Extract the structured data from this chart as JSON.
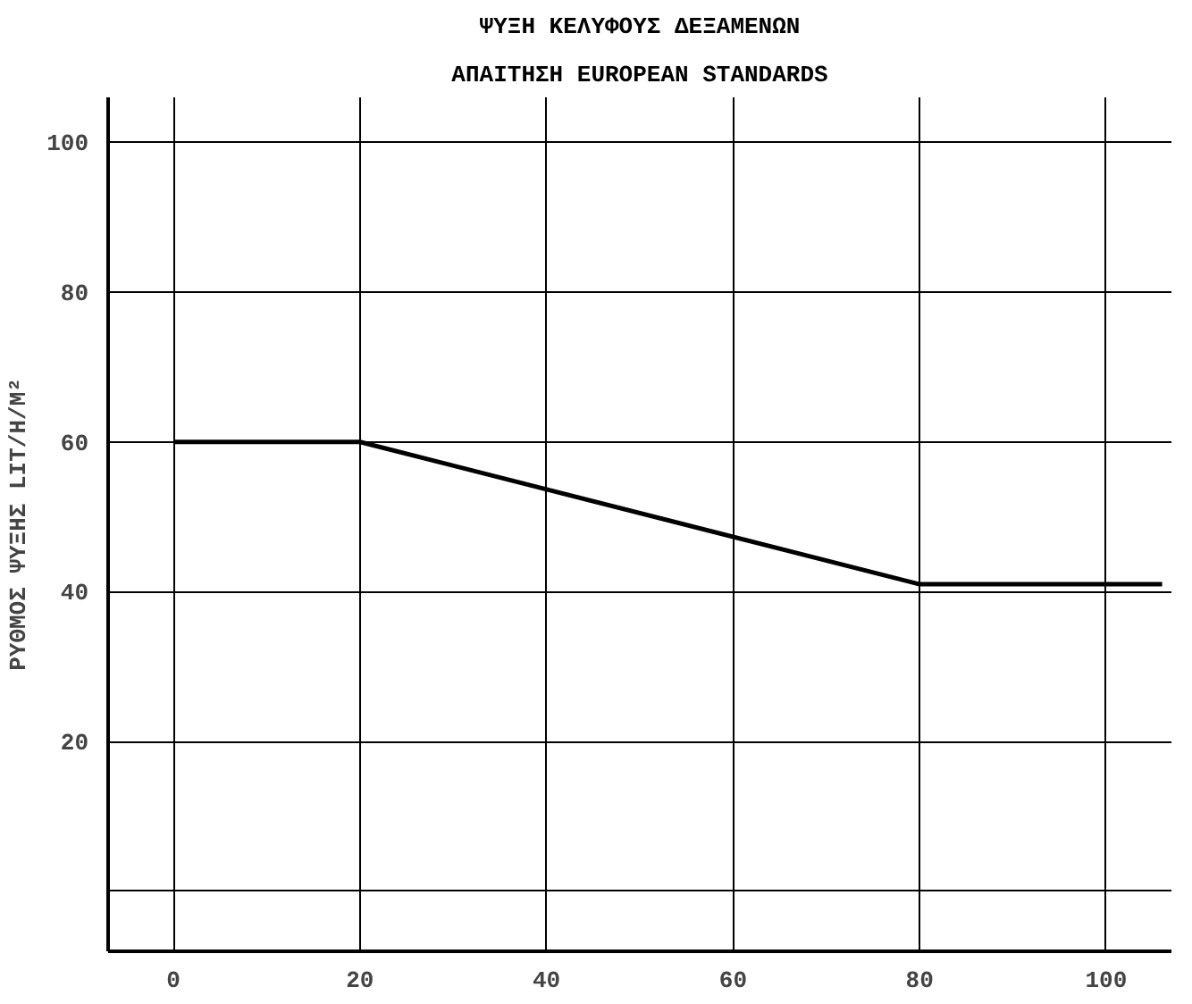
{
  "chart_data": {
    "type": "line",
    "title": "ΨΥΞΗ ΚΕΛΥΦΟΥΣ ΔΕΞΑΜΕΝΩΝ",
    "subtitle": "ΑΠΑΙΤΗΣΗ EUROPEAN STANDARDS",
    "ylabel": "ΡΥΘΜΟΣ ΨΥΞΗΣ LIT/H/M²",
    "x": [
      0,
      20,
      80,
      106
    ],
    "series": [
      {
        "color": "#000000",
        "values": [
          60,
          60,
          41,
          41
        ]
      }
    ],
    "xlim": [
      -7,
      107
    ],
    "ylim": [
      -8,
      106
    ],
    "xticks": [
      0,
      20,
      40,
      60,
      80,
      100
    ],
    "yticks": [
      {
        "value": 0,
        "label": null
      },
      20,
      40,
      60,
      80,
      100
    ],
    "grid": true,
    "marker": "none",
    "line_style": "solid"
  }
}
